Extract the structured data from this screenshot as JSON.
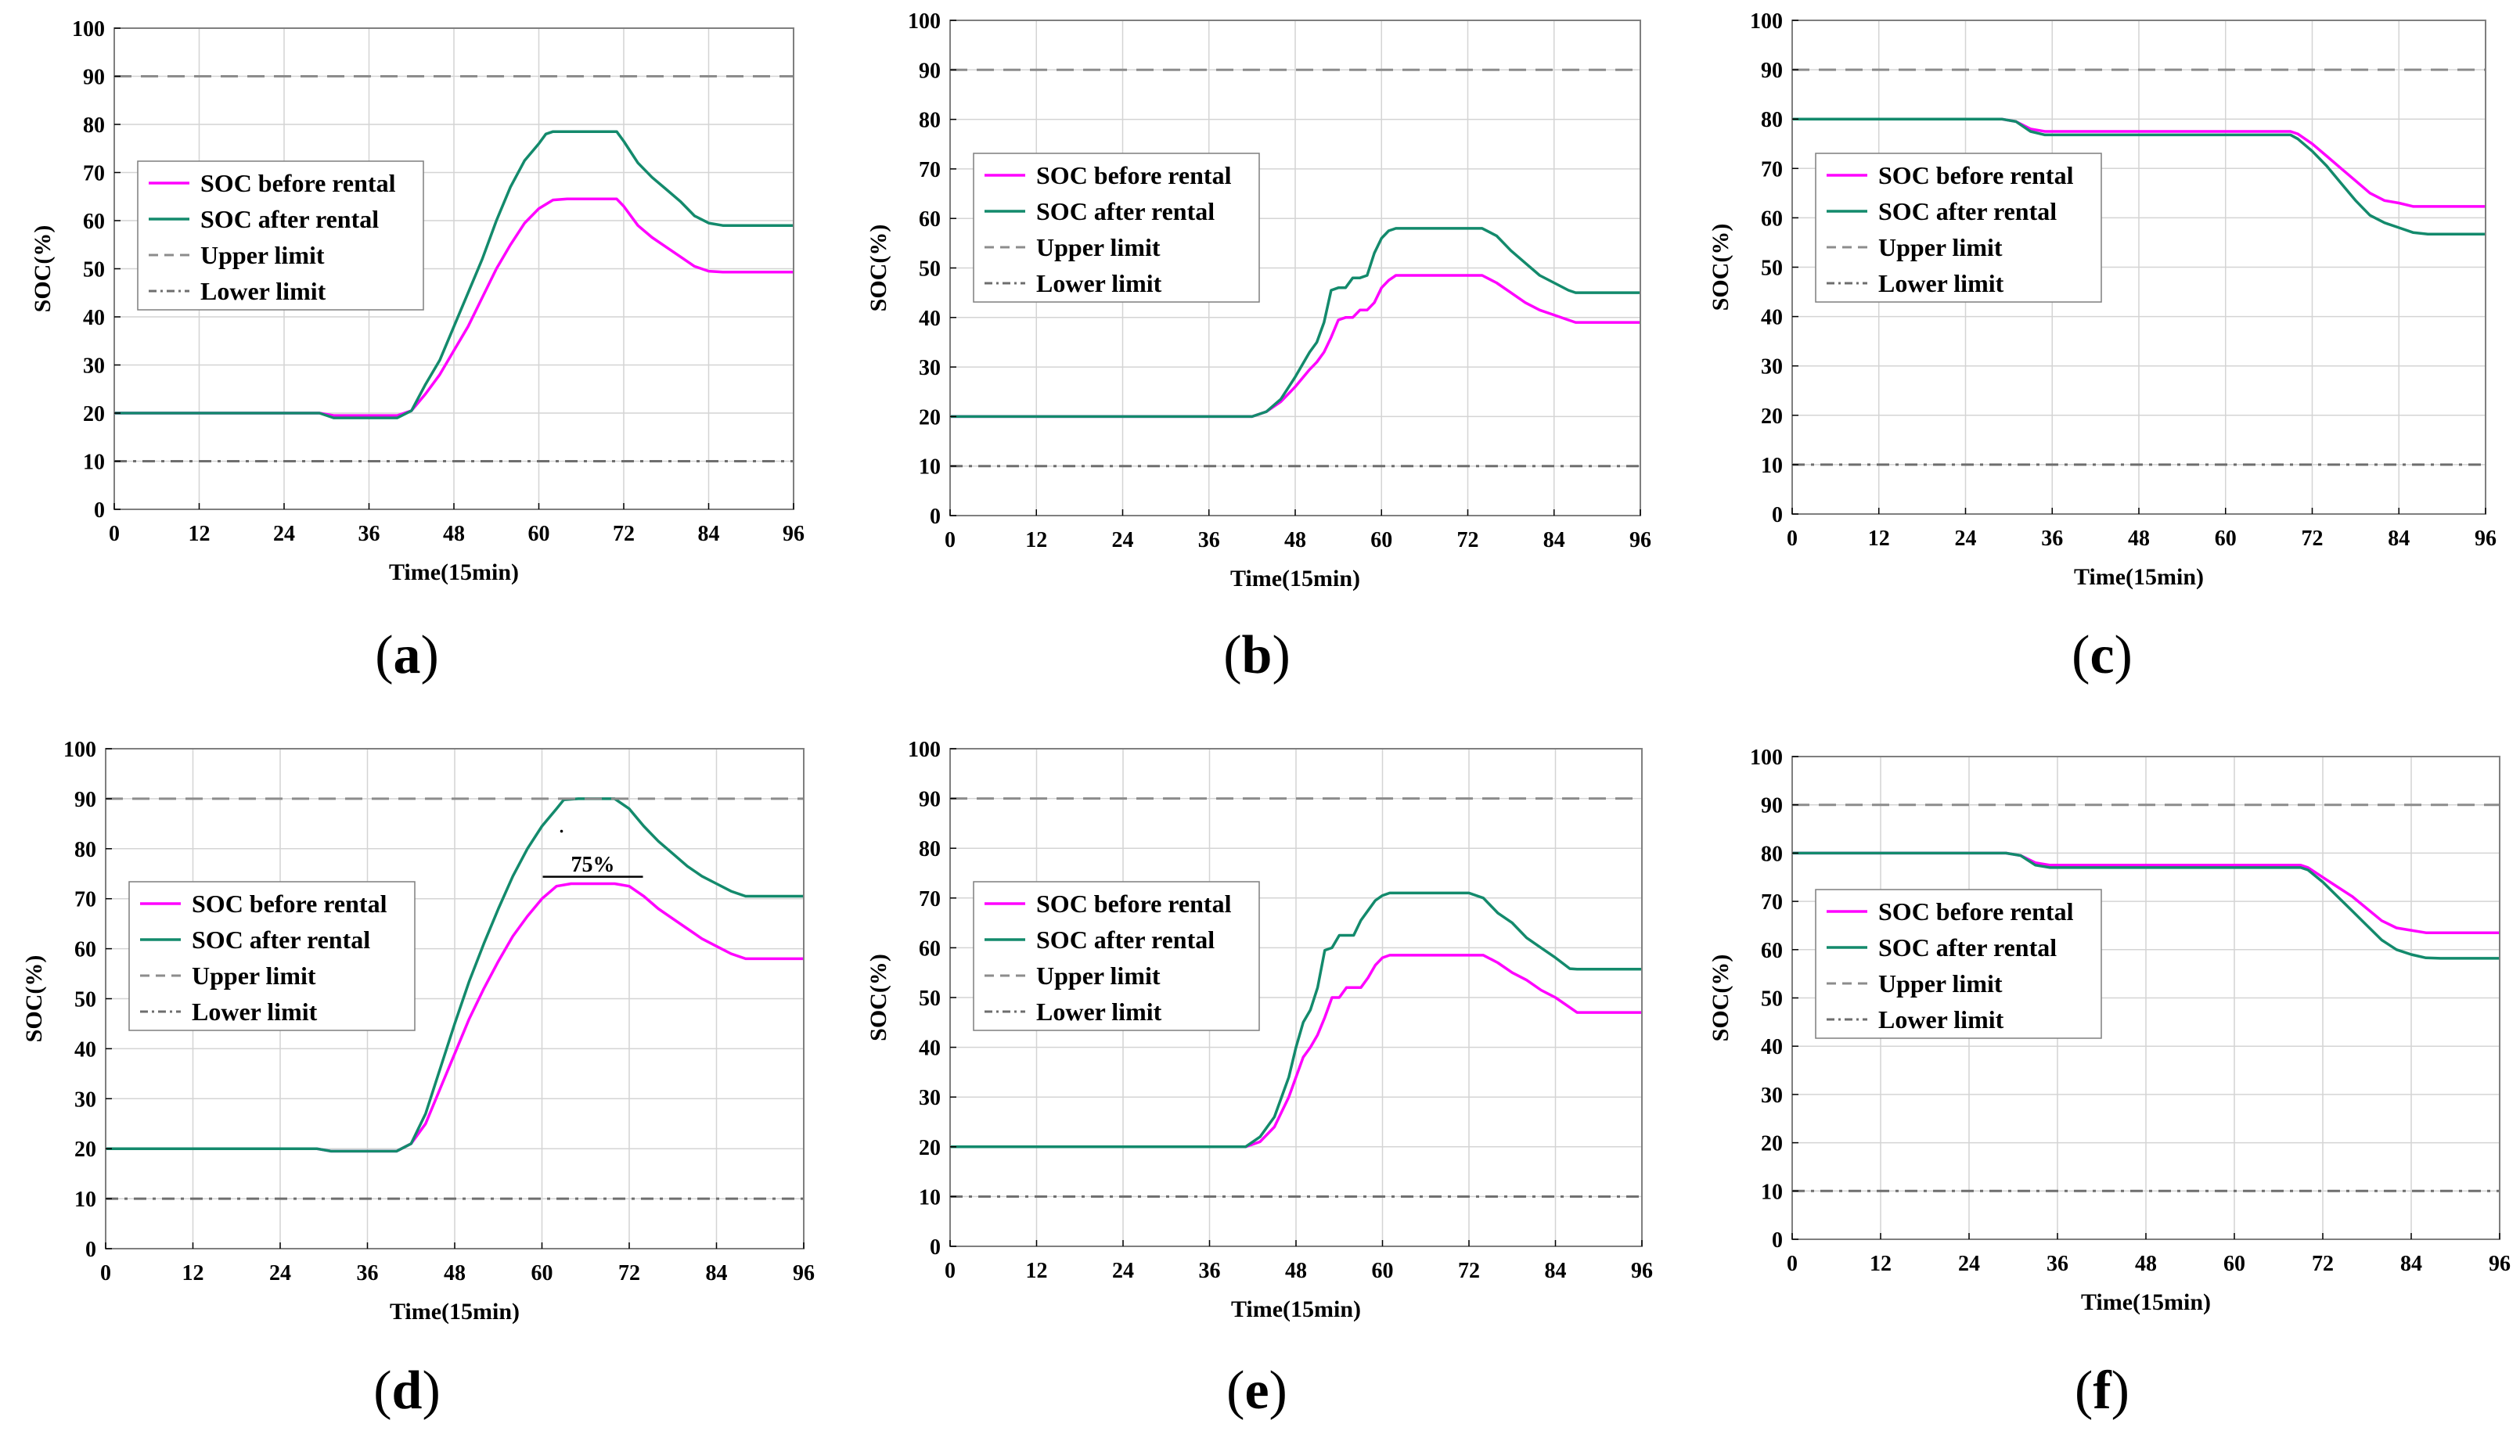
{
  "colors": {
    "before": "#ff00ff",
    "after": "#138a6c",
    "upper": "#8c8c8c",
    "lower": "#6e6e6e",
    "grid": "#d4d4d4",
    "frame": "#7f7f7f"
  },
  "chart_data": [
    {
      "type": "line",
      "panel_label": "a",
      "xlabel": "Time(15min)",
      "ylabel": "SOC(%)",
      "xlim": [
        0,
        96
      ],
      "ylim": [
        0,
        100
      ],
      "xticks": [
        0,
        12,
        24,
        36,
        48,
        60,
        72,
        84,
        96
      ],
      "yticks": [
        0,
        10,
        20,
        30,
        40,
        50,
        60,
        70,
        80,
        90,
        100
      ],
      "grid": true,
      "legend_position": "left",
      "series": [
        {
          "name": "SOC before rental",
          "style": "solid",
          "color_key": "before",
          "x": [
            0,
            29,
            31,
            40,
            42,
            44,
            46,
            48,
            50,
            52,
            54,
            56,
            58,
            60,
            62,
            64,
            66,
            68,
            70,
            71,
            72,
            74,
            76,
            78,
            80,
            82,
            84,
            86,
            96
          ],
          "y": [
            20,
            20,
            19.5,
            19.5,
            20.5,
            24,
            28,
            33,
            38,
            44,
            50,
            55,
            59.5,
            62.5,
            64.3,
            64.5,
            64.5,
            64.5,
            64.5,
            64.5,
            63,
            59,
            56.5,
            54.5,
            52.5,
            50.5,
            49.5,
            49.3,
            49.3
          ]
        },
        {
          "name": "SOC after rental",
          "style": "solid",
          "color_key": "after",
          "x": [
            0,
            29,
            31,
            40,
            42,
            44,
            46,
            48,
            50,
            52,
            54,
            56,
            58,
            60,
            61,
            62,
            64,
            66,
            68,
            70,
            71,
            72,
            74,
            76,
            78,
            80,
            82,
            84,
            86,
            96
          ],
          "y": [
            20,
            20,
            19,
            19,
            20.5,
            26,
            31,
            38,
            45,
            52,
            60,
            67,
            72.5,
            76,
            78,
            78.5,
            78.5,
            78.5,
            78.5,
            78.5,
            78.5,
            76.5,
            72,
            69,
            66.5,
            64,
            61,
            59.5,
            59,
            59
          ]
        },
        {
          "name": "Upper limit",
          "style": "dashed",
          "color_key": "upper",
          "x": [
            0,
            96
          ],
          "y": [
            90,
            90
          ]
        },
        {
          "name": "Lower limit",
          "style": "dashdot",
          "color_key": "lower",
          "x": [
            0,
            96
          ],
          "y": [
            10,
            10
          ]
        }
      ],
      "annotations": []
    },
    {
      "type": "line",
      "panel_label": "b",
      "xlabel": "Time(15min)",
      "ylabel": "SOC(%)",
      "xlim": [
        0,
        96
      ],
      "ylim": [
        0,
        100
      ],
      "xticks": [
        0,
        12,
        24,
        36,
        48,
        60,
        72,
        84,
        96
      ],
      "yticks": [
        0,
        10,
        20,
        30,
        40,
        50,
        60,
        70,
        80,
        90,
        100
      ],
      "grid": true,
      "legend_position": "left",
      "series": [
        {
          "name": "SOC before rental",
          "style": "solid",
          "color_key": "before",
          "x": [
            0,
            42,
            44,
            46,
            48,
            50,
            51,
            52,
            53,
            54,
            55,
            56,
            57,
            58,
            59,
            60,
            61,
            62,
            64,
            66,
            68,
            70,
            72,
            74,
            76,
            78,
            80,
            82,
            84,
            86,
            87,
            96
          ],
          "y": [
            20,
            20,
            21,
            23,
            26,
            29.5,
            31,
            33,
            36,
            39.5,
            40,
            40,
            41.5,
            41.5,
            43,
            46,
            47.5,
            48.5,
            48.5,
            48.5,
            48.5,
            48.5,
            48.5,
            48.5,
            47,
            45,
            43,
            41.5,
            40.5,
            39.5,
            39,
            39
          ]
        },
        {
          "name": "SOC after rental",
          "style": "solid",
          "color_key": "after",
          "x": [
            0,
            42,
            44,
            46,
            48,
            50,
            51,
            52,
            53,
            54,
            55,
            56,
            57,
            58,
            59,
            60,
            61,
            62,
            64,
            66,
            68,
            70,
            72,
            74,
            76,
            78,
            80,
            82,
            84,
            86,
            87,
            96
          ],
          "y": [
            20,
            20,
            21,
            23.5,
            28,
            33,
            35,
            39,
            45.5,
            46,
            46,
            48,
            48,
            48.5,
            53,
            56,
            57.5,
            58,
            58,
            58,
            58,
            58,
            58,
            58,
            56.5,
            53.5,
            51,
            48.5,
            47,
            45.5,
            45,
            45
          ]
        },
        {
          "name": "Upper limit",
          "style": "dashed",
          "color_key": "upper",
          "x": [
            0,
            96
          ],
          "y": [
            90,
            90
          ]
        },
        {
          "name": "Lower limit",
          "style": "dashdot",
          "color_key": "lower",
          "x": [
            0,
            96
          ],
          "y": [
            10,
            10
          ]
        }
      ],
      "annotations": []
    },
    {
      "type": "line",
      "panel_label": "c",
      "xlabel": "Time(15min)",
      "ylabel": "SOC(%)",
      "xlim": [
        0,
        96
      ],
      "ylim": [
        0,
        100
      ],
      "xticks": [
        0,
        12,
        24,
        36,
        48,
        60,
        72,
        84,
        96
      ],
      "yticks": [
        0,
        10,
        20,
        30,
        40,
        50,
        60,
        70,
        80,
        90,
        100
      ],
      "grid": true,
      "legend_position": "left",
      "series": [
        {
          "name": "SOC before rental",
          "style": "solid",
          "color_key": "before",
          "x": [
            0,
            29,
            31,
            33,
            35,
            50,
            60,
            69,
            70,
            72,
            74,
            76,
            78,
            80,
            82,
            84,
            86,
            88,
            96
          ],
          "y": [
            80,
            80,
            79.5,
            78,
            77.5,
            77.5,
            77.5,
            77.5,
            77,
            75,
            72.5,
            70,
            67.5,
            65,
            63.5,
            63,
            62.3,
            62.3,
            62.3
          ]
        },
        {
          "name": "SOC after rental",
          "style": "solid",
          "color_key": "after",
          "x": [
            0,
            29,
            31,
            33,
            35,
            50,
            60,
            69,
            70,
            72,
            74,
            76,
            78,
            80,
            82,
            84,
            86,
            88,
            96
          ],
          "y": [
            80,
            80,
            79.5,
            77.5,
            76.8,
            76.8,
            76.8,
            76.8,
            76,
            73.5,
            70.5,
            67,
            63.5,
            60.5,
            59,
            58,
            57,
            56.7,
            56.7
          ]
        },
        {
          "name": "Upper limit",
          "style": "dashed",
          "color_key": "upper",
          "x": [
            0,
            96
          ],
          "y": [
            90,
            90
          ]
        },
        {
          "name": "Lower limit",
          "style": "dashdot",
          "color_key": "lower",
          "x": [
            0,
            96
          ],
          "y": [
            10,
            10
          ]
        }
      ],
      "annotations": []
    },
    {
      "type": "line",
      "panel_label": "d",
      "xlabel": "Time(15min)",
      "ylabel": "SOC(%)",
      "xlim": [
        0,
        96
      ],
      "ylim": [
        0,
        100
      ],
      "xticks": [
        0,
        12,
        24,
        36,
        48,
        60,
        72,
        84,
        96
      ],
      "yticks": [
        0,
        10,
        20,
        30,
        40,
        50,
        60,
        70,
        80,
        90,
        100
      ],
      "grid": true,
      "legend_position": "left",
      "series": [
        {
          "name": "SOC before rental",
          "style": "solid",
          "color_key": "before",
          "x": [
            0,
            29,
            31,
            40,
            42,
            44,
            46,
            48,
            50,
            52,
            54,
            56,
            58,
            60,
            62,
            64,
            66,
            68,
            70,
            72,
            74,
            76,
            78,
            80,
            82,
            84,
            86,
            88,
            96
          ],
          "y": [
            20,
            20,
            19.5,
            19.5,
            21,
            25,
            32,
            39,
            46,
            52,
            57.5,
            62.5,
            66.5,
            70,
            72.5,
            73,
            73,
            73,
            73,
            72.5,
            70.5,
            68,
            66,
            64,
            62,
            60.5,
            59,
            58,
            58
          ]
        },
        {
          "name": "SOC after rental",
          "style": "solid",
          "color_key": "after",
          "x": [
            0,
            29,
            31,
            40,
            42,
            44,
            46,
            48,
            50,
            52,
            54,
            56,
            58,
            60,
            62,
            63,
            65,
            68,
            70,
            72,
            74,
            76,
            78,
            80,
            82,
            84,
            86,
            88,
            96
          ],
          "y": [
            20,
            20,
            19.5,
            19.5,
            21,
            27,
            36,
            45,
            53.5,
            61,
            68,
            74.5,
            80,
            84.5,
            88,
            89.8,
            90,
            90,
            90,
            88,
            84.5,
            81.5,
            79,
            76.5,
            74.5,
            73,
            71.5,
            70.5,
            70.5
          ]
        },
        {
          "name": "Upper limit",
          "style": "dashed",
          "color_key": "upper",
          "x": [
            0,
            96
          ],
          "y": [
            90,
            90
          ]
        },
        {
          "name": "Lower limit",
          "style": "dashdot",
          "color_key": "lower",
          "x": [
            0,
            96
          ],
          "y": [
            10,
            10
          ]
        }
      ],
      "annotations": [
        {
          "text": "75%",
          "x": 67,
          "y": 77
        }
      ]
    },
    {
      "type": "line",
      "panel_label": "e",
      "xlabel": "Time(15min)",
      "ylabel": "SOC(%)",
      "xlim": [
        0,
        96
      ],
      "ylim": [
        0,
        100
      ],
      "xticks": [
        0,
        12,
        24,
        36,
        48,
        60,
        72,
        84,
        96
      ],
      "yticks": [
        0,
        10,
        20,
        30,
        40,
        50,
        60,
        70,
        80,
        90,
        100
      ],
      "grid": true,
      "legend_position": "left",
      "series": [
        {
          "name": "SOC before rental",
          "style": "solid",
          "color_key": "before",
          "x": [
            0,
            41,
            43,
            45,
            47,
            49,
            50,
            51,
            52,
            53,
            54,
            55,
            56,
            57,
            58,
            59,
            60,
            61,
            62,
            64,
            66,
            68,
            70,
            72,
            74,
            76,
            78,
            80,
            82,
            84,
            86,
            87,
            96
          ],
          "y": [
            20,
            20,
            21,
            24,
            30,
            38,
            40,
            42.5,
            46,
            50,
            50,
            52,
            52,
            52,
            54,
            56.5,
            58,
            58.5,
            58.5,
            58.5,
            58.5,
            58.5,
            58.5,
            58.5,
            58.5,
            57,
            55,
            53.5,
            51.5,
            50,
            48,
            47,
            47
          ]
        },
        {
          "name": "SOC after rental",
          "style": "solid",
          "color_key": "after",
          "x": [
            0,
            41,
            43,
            45,
            47,
            48,
            49,
            50,
            51,
            52,
            53,
            54,
            55,
            56,
            57,
            58,
            59,
            60,
            61,
            62,
            64,
            66,
            68,
            70,
            72,
            74,
            76,
            78,
            80,
            82,
            84,
            86,
            87,
            96
          ],
          "y": [
            20,
            20,
            22,
            26,
            34,
            40,
            45,
            47.5,
            52,
            59.5,
            60,
            62.5,
            62.5,
            62.5,
            65.5,
            67.5,
            69.5,
            70.5,
            71,
            71,
            71,
            71,
            71,
            71,
            71,
            70,
            67,
            65,
            62,
            60,
            58,
            55.8,
            55.7,
            55.7
          ]
        },
        {
          "name": "Upper limit",
          "style": "dashed",
          "color_key": "upper",
          "x": [
            0,
            96
          ],
          "y": [
            90,
            90
          ]
        },
        {
          "name": "Lower limit",
          "style": "dashdot",
          "color_key": "lower",
          "x": [
            0,
            96
          ],
          "y": [
            10,
            10
          ]
        }
      ],
      "annotations": []
    },
    {
      "type": "line",
      "panel_label": "f",
      "xlabel": "Time(15min)",
      "ylabel": "SOC(%)",
      "xlim": [
        0,
        96
      ],
      "ylim": [
        0,
        100
      ],
      "xticks": [
        0,
        12,
        24,
        36,
        48,
        60,
        72,
        84,
        96
      ],
      "yticks": [
        0,
        10,
        20,
        30,
        40,
        50,
        60,
        70,
        80,
        90,
        100
      ],
      "grid": true,
      "legend_position": "left",
      "series": [
        {
          "name": "SOC before rental",
          "style": "solid",
          "color_key": "before",
          "x": [
            0,
            29,
            31,
            33,
            35,
            50,
            60,
            69,
            70,
            72,
            74,
            76,
            78,
            80,
            82,
            84,
            86,
            88,
            96
          ],
          "y": [
            80,
            80,
            79.5,
            78,
            77.5,
            77.5,
            77.5,
            77.5,
            77,
            75,
            73,
            71,
            68.5,
            66,
            64.5,
            64,
            63.5,
            63.5,
            63.5
          ]
        },
        {
          "name": "SOC after rental",
          "style": "solid",
          "color_key": "after",
          "x": [
            0,
            29,
            31,
            33,
            35,
            50,
            60,
            69,
            70,
            72,
            74,
            76,
            78,
            80,
            82,
            84,
            86,
            88,
            96
          ],
          "y": [
            80,
            80,
            79.5,
            77.5,
            77,
            77,
            77,
            77,
            76.5,
            74,
            71,
            68,
            65,
            62,
            60,
            59,
            58.3,
            58.2,
            58.2
          ]
        },
        {
          "name": "Upper limit",
          "style": "dashed",
          "color_key": "upper",
          "x": [
            0,
            96
          ],
          "y": [
            90,
            90
          ]
        },
        {
          "name": "Lower limit",
          "style": "dashdot",
          "color_key": "lower",
          "x": [
            0,
            96
          ],
          "y": [
            10,
            10
          ]
        }
      ],
      "annotations": []
    }
  ]
}
